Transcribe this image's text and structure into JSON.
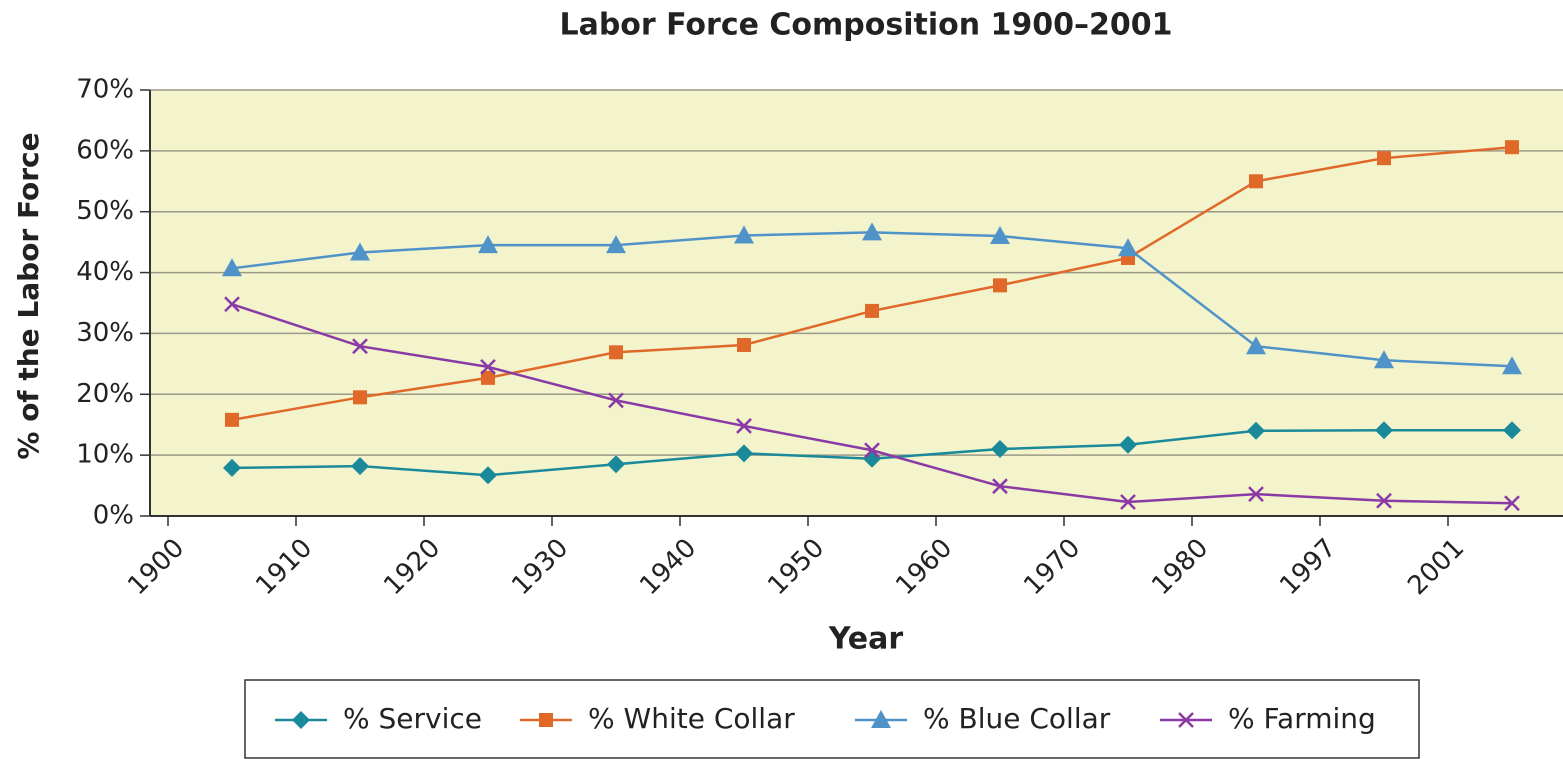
{
  "chart_data": {
    "type": "line",
    "title": "Labor Force Composition 1900–2001",
    "x_label": "Year",
    "y_label": "% of the Labor Force",
    "categories": [
      "1900",
      "1910",
      "1920",
      "1930",
      "1940",
      "1950",
      "1960",
      "1970",
      "1980",
      "1997",
      "2001"
    ],
    "series": [
      {
        "name": "% Service",
        "color": "#1a8a9a",
        "marker": "diamond",
        "values": [
          7.9,
          8.2,
          6.7,
          8.5,
          10.3,
          9.4,
          11,
          11.7,
          14,
          14.1,
          14.1
        ]
      },
      {
        "name": "%  White Collar",
        "color": "#e0692a",
        "marker": "square",
        "values": [
          15.8,
          19.5,
          22.7,
          26.9,
          28.1,
          33.7,
          37.9,
          42.4,
          55,
          58.8,
          60.6
        ]
      },
      {
        "name": "% Blue Collar",
        "color": "#4f93c9",
        "marker": "triangle",
        "values": [
          40.7,
          43.3,
          44.5,
          44.5,
          46.1,
          46.6,
          46,
          44,
          27.9,
          25.6,
          24.6
        ]
      },
      {
        "name": "% Farming",
        "color": "#8a3aa5",
        "marker": "x",
        "values": [
          34.8,
          27.9,
          24.5,
          19,
          14.8,
          10.8,
          4.9,
          2.3,
          3.6,
          2.5,
          2.1
        ]
      }
    ],
    "ylim": [
      0,
      70
    ],
    "yticks": [
      {
        "value": 0,
        "label": "0%"
      },
      {
        "value": 10,
        "label": "10%"
      },
      {
        "value": 20,
        "label": "20%"
      },
      {
        "value": 30,
        "label": "30%"
      },
      {
        "value": 40,
        "label": "40%"
      },
      {
        "value": 50,
        "label": "50%"
      },
      {
        "value": 60,
        "label": "60%"
      },
      {
        "value": 70,
        "label": "70%"
      }
    ],
    "grid": true,
    "legend": "bottom"
  }
}
